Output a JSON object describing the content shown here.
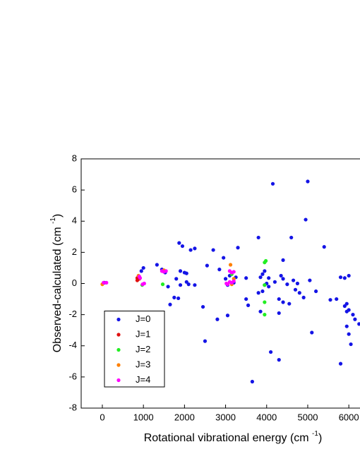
{
  "chart_data": {
    "type": "scatter",
    "xlabel": "Rotational vibrational energy (cm",
    "xlabel_sup": "-1",
    "xlabel_end": ")",
    "ylabel": "Observed-calculated (cm",
    "ylabel_sup": "-1",
    "ylabel_end": ")",
    "xlim": [
      -515,
      6255
    ],
    "ylim": [
      -8,
      8
    ],
    "xticks": [
      0,
      1000,
      2000,
      3000,
      4000,
      5000,
      6000
    ],
    "yticks": [
      -8,
      -6,
      -4,
      -2,
      0,
      2,
      4,
      6,
      8
    ],
    "legend": "lower left",
    "series": [
      {
        "name": "J=0",
        "color": "#1414e6",
        "x": [
          50,
          950,
          1000,
          1330,
          1450,
          1530,
          1600,
          1650,
          1750,
          1800,
          1870,
          1950,
          1900,
          1900,
          1850,
          2000,
          2050,
          2050,
          2100,
          2150,
          2250,
          2250,
          2450,
          2500,
          2550,
          2700,
          2800,
          2850,
          2950,
          3000,
          3050,
          3100,
          3050,
          3250,
          3300,
          3200,
          3500,
          3500,
          3550,
          3650,
          3800,
          3800,
          3850,
          3850,
          3900,
          3950,
          3900,
          3950,
          4000,
          4050,
          4050,
          4100,
          4150,
          4200,
          4300,
          4300,
          4300,
          4350,
          4400,
          4400,
          4400,
          4500,
          4550,
          4600,
          4650,
          4700,
          4750,
          4800,
          4900,
          4950,
          5000,
          5050,
          5100,
          5200,
          5400,
          5550,
          5700,
          5800,
          5800,
          5900,
          5900,
          5950,
          5950,
          6000,
          6000,
          6000,
          6050,
          6100,
          6150,
          6250,
          5950
        ],
        "values": [
          0.05,
          0.8,
          1.0,
          1.2,
          0.9,
          0.7,
          -0.2,
          -1.35,
          -0.9,
          0.3,
          2.6,
          2.4,
          0.8,
          -0.1,
          -0.95,
          0.7,
          0.65,
          0.1,
          -0.05,
          2.15,
          2.25,
          -0.1,
          -1.5,
          -3.7,
          1.15,
          2.15,
          -2.3,
          0.9,
          1.65,
          0.3,
          -2.05,
          0.5,
          -0.1,
          0.4,
          2.3,
          0.05,
          0.35,
          -1.0,
          -1.4,
          -6.3,
          2.95,
          -0.6,
          -1.8,
          0.4,
          0.6,
          0.8,
          -0.5,
          -0.1,
          0.0,
          -0.2,
          0.35,
          -4.4,
          6.4,
          0.1,
          -1.0,
          -1.9,
          -4.9,
          0.5,
          1.5,
          0.3,
          -1.2,
          -0.05,
          -1.3,
          2.95,
          0.2,
          -0.4,
          0.0,
          -0.6,
          -0.9,
          4.1,
          6.55,
          0.2,
          -3.15,
          -0.5,
          2.35,
          -1.05,
          -1.0,
          -5.15,
          0.4,
          0.35,
          -1.45,
          -1.3,
          -2.75,
          0.5,
          -1.7,
          -3.25,
          -3.9,
          -2.0,
          -2.3,
          -2.6,
          -1.8
        ]
      },
      {
        "name": "J=1",
        "color": "#e01010",
        "x": [
          850,
          900,
          850
        ],
        "values": [
          0.2,
          0.3,
          0.35
        ]
      },
      {
        "name": "J=2",
        "color": "#22ee22",
        "x": [
          970,
          1470,
          3950,
          3980,
          3950,
          3950,
          3950,
          3150
        ],
        "values": [
          -0.1,
          -0.05,
          1.35,
          1.45,
          -1.2,
          -2.0,
          -0.1,
          0.6
        ]
      },
      {
        "name": "J=3",
        "color": "#ff8000",
        "x": [
          0,
          880,
          1500,
          3120,
          3150,
          3200
        ],
        "values": [
          -0.05,
          0.5,
          0.85,
          1.2,
          -0.05,
          0.3
        ]
      },
      {
        "name": "J=4",
        "color": "#ff00ff",
        "x": [
          30,
          100,
          900,
          920,
          980,
          1020,
          1450,
          1500,
          1550,
          3020,
          3100,
          3150,
          3200,
          3100,
          3150,
          3200,
          3050
        ],
        "values": [
          0.05,
          0.05,
          0.45,
          0.35,
          -0.05,
          0.0,
          0.8,
          0.75,
          0.8,
          0.0,
          0.8,
          0.7,
          0.75,
          0.1,
          0.05,
          0.15,
          -0.05
        ]
      }
    ]
  }
}
